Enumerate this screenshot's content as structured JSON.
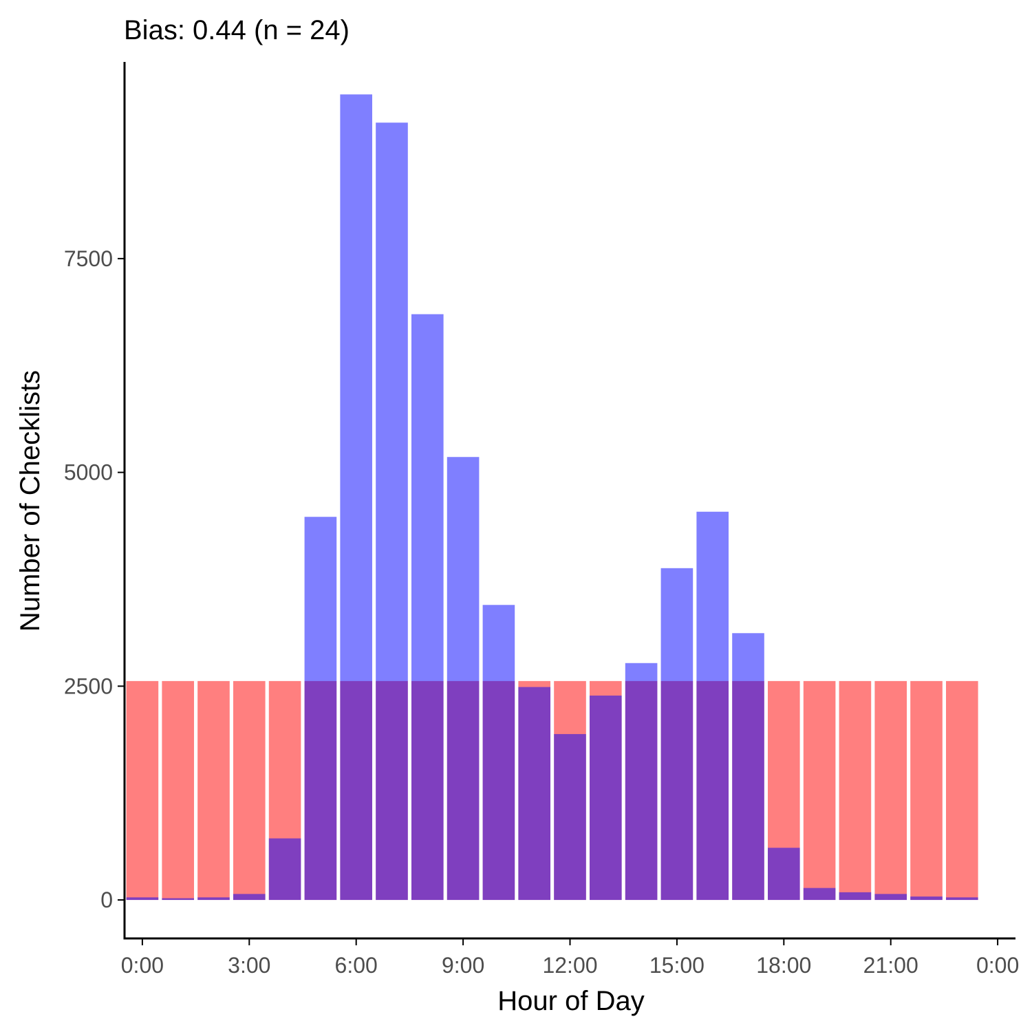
{
  "chart_data": {
    "type": "bar",
    "title": "Bias: 0.44 (n = 24)",
    "xlabel": "Hour of Day",
    "ylabel": "Number of Checklists",
    "x": [
      0,
      1,
      2,
      3,
      4,
      5,
      6,
      7,
      8,
      9,
      10,
      11,
      12,
      13,
      14,
      15,
      16,
      17,
      18,
      19,
      20,
      21,
      22,
      23
    ],
    "xlim": [
      -0.5,
      24.5
    ],
    "ylim": [
      -450,
      9800
    ],
    "x_ticks": [
      {
        "value": 0,
        "label": "0:00"
      },
      {
        "value": 3,
        "label": "3:00"
      },
      {
        "value": 6,
        "label": "6:00"
      },
      {
        "value": 9,
        "label": "9:00"
      },
      {
        "value": 12,
        "label": "12:00"
      },
      {
        "value": 15,
        "label": "15:00"
      },
      {
        "value": 18,
        "label": "18:00"
      },
      {
        "value": 21,
        "label": "21:00"
      },
      {
        "value": 24,
        "label": "0:00"
      }
    ],
    "y_ticks": [
      {
        "value": 0,
        "label": "0"
      },
      {
        "value": 2500,
        "label": "2500"
      },
      {
        "value": 5000,
        "label": "5000"
      },
      {
        "value": 7500,
        "label": "7500"
      }
    ],
    "grid": false,
    "legend": "none",
    "overlap": "overlay, semi-transparent",
    "series": [
      {
        "color": "#ff0000",
        "opacity": 0.5,
        "values": [
          2560,
          2560,
          2560,
          2560,
          2560,
          2560,
          2560,
          2560,
          2560,
          2560,
          2560,
          2560,
          2560,
          2560,
          2560,
          2560,
          2560,
          2560,
          2560,
          2560,
          2560,
          2560,
          2560,
          2560
        ]
      },
      {
        "color": "#0000ff",
        "opacity": 0.5,
        "values": [
          30,
          20,
          30,
          70,
          720,
          4480,
          9420,
          9090,
          6850,
          5180,
          3450,
          2490,
          1940,
          2390,
          2770,
          3880,
          4540,
          3120,
          610,
          140,
          90,
          70,
          40,
          30
        ]
      }
    ]
  }
}
